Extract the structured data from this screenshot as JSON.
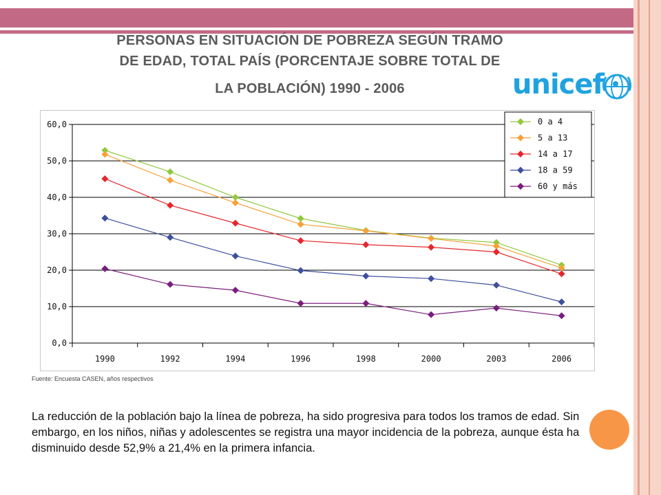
{
  "title": {
    "line1": "PERSONAS EN SITUACIÓN DE POBREZA SEGÚN TRAMO",
    "line2": "DE EDAD, TOTAL PAÍS (PORCENTAJE SOBRE TOTAL DE",
    "line3": "LA POBLACIÓN) 1990 - 2006"
  },
  "logo": {
    "text": "unicef"
  },
  "source": "Fuente: Encuesta CASEN, años respectivos",
  "paragraph": "La reducción de la población bajo la línea de pobreza, ha sido progresiva para todos los tramos de edad. Sin embargo, en los niños, niñas y adolescentes se registra una mayor incidencia de la pobreza, aunque ésta ha disminuido desde 52,9% a 21,4% en la primera infancia.",
  "colors": {
    "accent_band": "#c26a85",
    "accent_dot": "#f79646",
    "unicef_blue": "#1fa3e0"
  },
  "chart_data": {
    "type": "line",
    "categories": [
      "1990",
      "1992",
      "1994",
      "1996",
      "1998",
      "2000",
      "2003",
      "2006"
    ],
    "ylim": [
      0,
      60
    ],
    "yticks": [
      "0,0",
      "10,0",
      "20,0",
      "30,0",
      "40,0",
      "50,0",
      "60,0"
    ],
    "legend_position": "top-right",
    "grid": true,
    "series": [
      {
        "name": "0 a 4",
        "color": "#92c83e",
        "values": [
          52.9,
          47.0,
          40.0,
          34.2,
          30.9,
          28.8,
          27.6,
          21.4
        ]
      },
      {
        "name": "5 a 13",
        "color": "#f7a13a",
        "values": [
          51.8,
          44.7,
          38.5,
          32.6,
          30.8,
          28.7,
          26.6,
          20.6
        ]
      },
      {
        "name": "14 a 17",
        "color": "#e4272d",
        "values": [
          45.1,
          37.8,
          32.9,
          28.1,
          27.0,
          26.3,
          25.0,
          19.0
        ]
      },
      {
        "name": "18 a 59",
        "color": "#3d4f9f",
        "values": [
          34.3,
          29.0,
          23.9,
          19.9,
          18.4,
          17.7,
          15.9,
          11.3
        ]
      },
      {
        "name": "60 y más",
        "color": "#7a1e7e",
        "values": [
          20.4,
          16.1,
          14.5,
          10.9,
          10.9,
          7.8,
          9.6,
          7.5
        ]
      }
    ]
  }
}
